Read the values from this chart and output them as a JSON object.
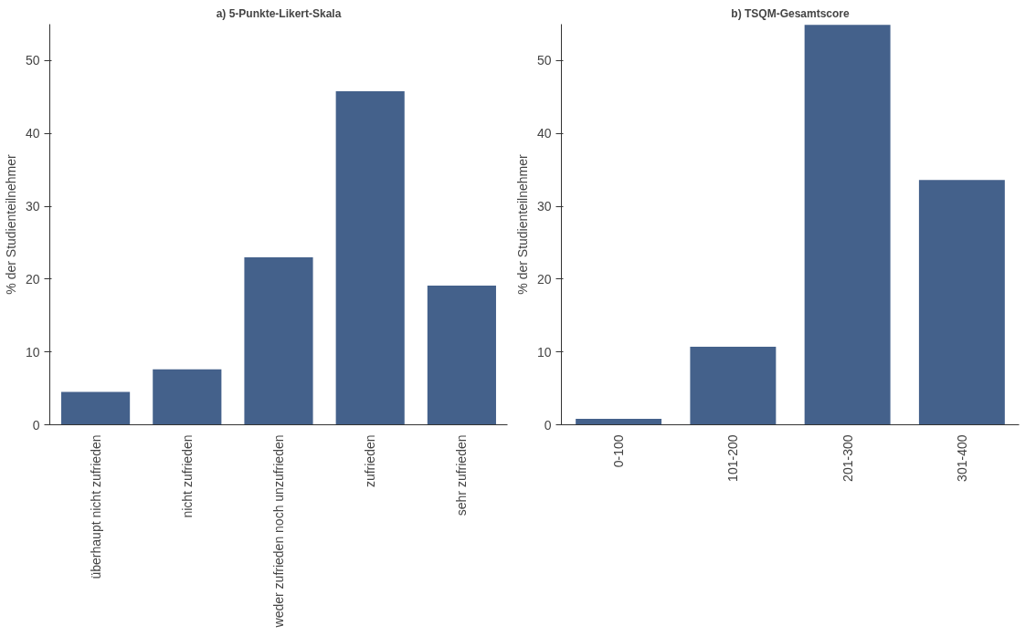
{
  "chart_data": [
    {
      "type": "bar",
      "title": "a) 5-Punkte-Likert-Skala",
      "ylabel": "% der Studienteilnehmer",
      "categories": [
        "überhaupt nicht zufrieden",
        "nicht zufrieden",
        "weder zufrieden noch unzufrieden",
        "zufrieden",
        "sehr zufrieden"
      ],
      "values": [
        4.5,
        7.6,
        23,
        45.8,
        19.1
      ],
      "color": "#44618b",
      "ylim": [
        0,
        55
      ],
      "yticks": [
        0,
        10,
        20,
        30,
        40,
        50
      ],
      "grid": false
    },
    {
      "type": "bar",
      "title": "b) TSQM-Gesamtscore",
      "ylabel": "% der Studienteilnehmer",
      "categories": [
        "0-100",
        "101-200",
        "201-300",
        "301-400"
      ],
      "values": [
        0.8,
        10.7,
        54.9,
        33.6
      ],
      "color": "#44618b",
      "ylim": [
        0,
        55
      ],
      "yticks": [
        0,
        10,
        20,
        30,
        40,
        50
      ],
      "grid": false
    }
  ]
}
